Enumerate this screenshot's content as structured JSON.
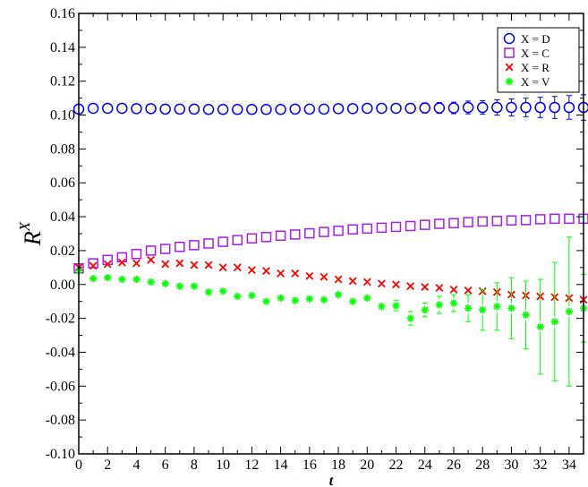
{
  "chart_data": {
    "type": "scatter",
    "xlabel": "t",
    "ylabel": {
      "base": "R",
      "superscript": "X"
    },
    "xlim": [
      0,
      35
    ],
    "ylim": [
      -0.1,
      0.16
    ],
    "x_ticks": [
      0,
      2,
      4,
      6,
      8,
      10,
      12,
      14,
      16,
      18,
      20,
      22,
      24,
      26,
      28,
      30,
      32,
      34
    ],
    "y_ticks": [
      "-0.10",
      "-0.08",
      "-0.06",
      "-0.04",
      "-0.02",
      "0.00",
      "0.02",
      "0.04",
      "0.06",
      "0.08",
      "0.10",
      "0.12",
      "0.14",
      "0.16"
    ],
    "grid": false,
    "legend": "top-right",
    "series": [
      {
        "name": "X = D",
        "marker": "circle",
        "color": "#0000ff",
        "x": [
          0,
          1,
          2,
          3,
          4,
          5,
          6,
          7,
          8,
          9,
          10,
          11,
          12,
          13,
          14,
          15,
          16,
          17,
          18,
          19,
          20,
          21,
          22,
          23,
          24,
          25,
          26,
          27,
          28,
          29,
          30,
          31,
          32,
          33,
          34,
          35
        ],
        "y": [
          0.1035,
          0.104,
          0.104,
          0.104,
          0.1038,
          0.1038,
          0.1035,
          0.1035,
          0.1035,
          0.1033,
          0.1033,
          0.1033,
          0.1033,
          0.1033,
          0.1033,
          0.1035,
          0.1035,
          0.1035,
          0.1038,
          0.1038,
          0.104,
          0.104,
          0.104,
          0.104,
          0.1042,
          0.1042,
          0.1042,
          0.1045,
          0.1045,
          0.1045,
          0.1045,
          0.1045,
          0.1045,
          0.1045,
          0.1045,
          0.1045
        ],
        "err": [
          0.002,
          0.002,
          0.002,
          0.002,
          0.002,
          0.002,
          0.002,
          0.002,
          0.002,
          0.002,
          0.002,
          0.002,
          0.002,
          0.002,
          0.002,
          0.002,
          0.002,
          0.002,
          0.002,
          0.002,
          0.0022,
          0.0024,
          0.0026,
          0.0028,
          0.003,
          0.0032,
          0.0034,
          0.0038,
          0.004,
          0.0045,
          0.005,
          0.0055,
          0.006,
          0.0065,
          0.007,
          0.0075
        ]
      },
      {
        "name": "X = C",
        "marker": "square",
        "color": "#a020f0",
        "x": [
          0,
          1,
          2,
          3,
          4,
          5,
          6,
          7,
          8,
          9,
          10,
          11,
          12,
          13,
          14,
          15,
          16,
          17,
          18,
          19,
          20,
          21,
          22,
          23,
          24,
          25,
          26,
          27,
          28,
          29,
          30,
          31,
          32,
          33,
          34,
          35
        ],
        "y": [
          0.0095,
          0.0125,
          0.0145,
          0.016,
          0.018,
          0.02,
          0.021,
          0.0222,
          0.0232,
          0.0242,
          0.0252,
          0.0262,
          0.0272,
          0.028,
          0.0288,
          0.0295,
          0.0302,
          0.031,
          0.0317,
          0.0325,
          0.033,
          0.0335,
          0.034,
          0.0345,
          0.0352,
          0.0358,
          0.0362,
          0.0368,
          0.0372,
          0.0375,
          0.0378,
          0.038,
          0.0385,
          0.0388,
          0.0388,
          0.0388
        ],
        "err": [
          0.001,
          0.001,
          0.001,
          0.001,
          0.001,
          0.001,
          0.001,
          0.001,
          0.001,
          0.001,
          0.001,
          0.001,
          0.001,
          0.001,
          0.001,
          0.001,
          0.001,
          0.001,
          0.001,
          0.001,
          0.001,
          0.001,
          0.001,
          0.001,
          0.001,
          0.001,
          0.001,
          0.001,
          0.001,
          0.001,
          0.001,
          0.001,
          0.001,
          0.001,
          0.001,
          0.001
        ]
      },
      {
        "name": "X = R",
        "marker": "x",
        "color": "#ff0000",
        "x": [
          0,
          1,
          2,
          3,
          4,
          5,
          6,
          7,
          8,
          9,
          10,
          11,
          12,
          13,
          14,
          15,
          16,
          17,
          18,
          19,
          20,
          21,
          22,
          23,
          24,
          25,
          26,
          27,
          28,
          29,
          30,
          31,
          32,
          33,
          34,
          35
        ],
        "y": [
          0.01,
          0.011,
          0.012,
          0.013,
          0.0125,
          0.0145,
          0.012,
          0.0125,
          0.0115,
          0.0115,
          0.01,
          0.01,
          0.0085,
          0.008,
          0.0065,
          0.0065,
          0.005,
          0.0045,
          0.003,
          0.002,
          0.0015,
          0.0005,
          0.0,
          -0.001,
          -0.0015,
          -0.002,
          -0.003,
          -0.0035,
          -0.004,
          -0.0045,
          -0.006,
          -0.0065,
          -0.007,
          -0.0075,
          -0.008,
          -0.009
        ],
        "err": [
          0.0005,
          0.0005,
          0.0005,
          0.0005,
          0.0005,
          0.0005,
          0.0005,
          0.0005,
          0.0005,
          0.0005,
          0.0005,
          0.0005,
          0.0005,
          0.0005,
          0.0005,
          0.0005,
          0.0005,
          0.0005,
          0.0005,
          0.0005,
          0.0005,
          0.0005,
          0.0005,
          0.0005,
          0.0005,
          0.0005,
          0.0005,
          0.0005,
          0.0005,
          0.0005,
          0.0005,
          0.0005,
          0.0005,
          0.0005,
          0.0005,
          0.0005
        ]
      },
      {
        "name": "X = V",
        "marker": "asterisk",
        "color": "#00ff00",
        "x": [
          0,
          1,
          2,
          3,
          4,
          5,
          6,
          7,
          8,
          9,
          10,
          11,
          12,
          13,
          14,
          15,
          16,
          17,
          18,
          19,
          20,
          21,
          22,
          23,
          24,
          25,
          26,
          27,
          28,
          29,
          30,
          31,
          32,
          33,
          34,
          35
        ],
        "y": [
          0.008,
          0.0035,
          0.004,
          0.003,
          0.003,
          0.0015,
          0.0005,
          -0.001,
          -0.001,
          -0.0045,
          -0.004,
          -0.007,
          -0.0065,
          -0.01,
          -0.008,
          -0.0095,
          -0.0085,
          -0.009,
          -0.006,
          -0.01,
          -0.008,
          -0.013,
          -0.0125,
          -0.02,
          -0.015,
          -0.012,
          -0.011,
          -0.014,
          -0.015,
          -0.013,
          -0.014,
          -0.018,
          -0.025,
          -0.022,
          -0.016,
          -0.014
        ],
        "err": [
          0.001,
          0.001,
          0.001,
          0.001,
          0.001,
          0.001,
          0.001,
          0.001,
          0.001,
          0.001,
          0.001,
          0.001,
          0.001,
          0.001,
          0.001,
          0.001,
          0.001,
          0.001,
          0.001,
          0.0015,
          0.002,
          0.002,
          0.003,
          0.004,
          0.004,
          0.005,
          0.005,
          0.008,
          0.012,
          0.014,
          0.018,
          0.02,
          0.028,
          0.035,
          0.044,
          0.02
        ]
      }
    ]
  }
}
